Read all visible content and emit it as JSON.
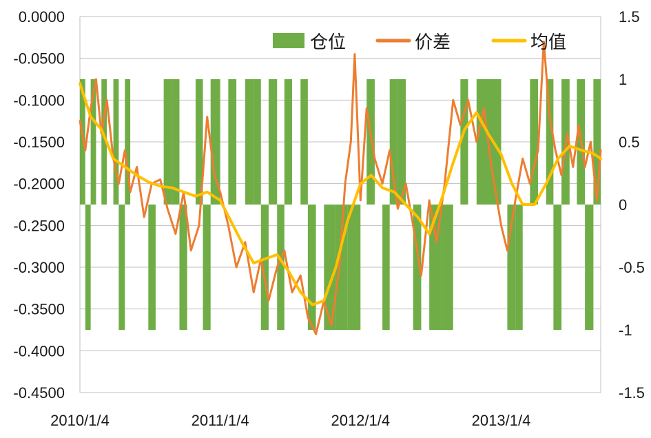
{
  "chart_data": {
    "type": "line",
    "title": "",
    "xlabel": "",
    "ylabel": "",
    "x_ticks": [
      "2010/1/4",
      "2011/1/4",
      "2012/1/4",
      "2013/1/4"
    ],
    "x_range": [
      "2010/1/4",
      "2013/9/20"
    ],
    "y_left": {
      "range": [
        -0.45,
        0.0
      ],
      "ticks": [
        "0.0000",
        "-0.0500",
        "-0.1000",
        "-0.1500",
        "-0.2000",
        "-0.2500",
        "-0.3000",
        "-0.3500",
        "-0.4000",
        "-0.4500"
      ],
      "tick_values": [
        0.0,
        -0.05,
        -0.1,
        -0.15,
        -0.2,
        -0.25,
        -0.3,
        -0.35,
        -0.4,
        -0.45
      ]
    },
    "y_right": {
      "range": [
        -1.5,
        1.5
      ],
      "ticks": [
        "1.5",
        "1",
        "0.5",
        "0",
        "-0.5",
        "-1",
        "-1.5"
      ],
      "tick_values": [
        1.5,
        1.0,
        0.5,
        0.0,
        -0.5,
        -1.0,
        -1.5
      ]
    },
    "grid": "horizontal",
    "legend": {
      "position": "top-right",
      "items": [
        {
          "name": "仓位",
          "color": "#70ad47",
          "kind": "area"
        },
        {
          "name": "价差",
          "color": "#ed7d31",
          "kind": "line"
        },
        {
          "name": "均值",
          "color": "#ffc000",
          "kind": "line"
        }
      ]
    },
    "series": [
      {
        "name": "仓位",
        "axis": "right",
        "kind": "area",
        "color": "#70ad47",
        "points": [
          [
            "2010/1/4",
            1
          ],
          [
            "2010/1/18",
            -1
          ],
          [
            "2010/2/1",
            1
          ],
          [
            "2010/2/15",
            0
          ],
          [
            "2010/3/1",
            1
          ],
          [
            "2010/3/15",
            0
          ],
          [
            "2010/4/1",
            1
          ],
          [
            "2010/4/15",
            -1
          ],
          [
            "2010/5/1",
            1
          ],
          [
            "2010/5/15",
            0
          ],
          [
            "2010/6/1",
            0
          ],
          [
            "2010/7/1",
            -1
          ],
          [
            "2010/7/20",
            0
          ],
          [
            "2010/8/10",
            1
          ],
          [
            "2010/9/1",
            1
          ],
          [
            "2010/9/20",
            -1
          ],
          [
            "2010/10/10",
            0
          ],
          [
            "2010/11/1",
            1
          ],
          [
            "2010/11/20",
            -1
          ],
          [
            "2010/12/10",
            1
          ],
          [
            "2011/1/4",
            0
          ],
          [
            "2011/1/25",
            1
          ],
          [
            "2011/2/15",
            0
          ],
          [
            "2011/3/10",
            1
          ],
          [
            "2011/4/1",
            1
          ],
          [
            "2011/4/20",
            -1
          ],
          [
            "2011/5/10",
            1
          ],
          [
            "2011/6/1",
            -1
          ],
          [
            "2011/6/20",
            1
          ],
          [
            "2011/7/10",
            0
          ],
          [
            "2011/8/1",
            1
          ],
          [
            "2011/8/20",
            -1
          ],
          [
            "2011/9/10",
            0
          ],
          [
            "2011/10/1",
            -1
          ],
          [
            "2011/11/1",
            -1
          ],
          [
            "2011/12/1",
            -1
          ],
          [
            "2012/1/4",
            0
          ],
          [
            "2012/1/20",
            1
          ],
          [
            "2012/2/10",
            0
          ],
          [
            "2012/3/1",
            -1
          ],
          [
            "2012/3/20",
            1
          ],
          [
            "2012/4/10",
            1
          ],
          [
            "2012/5/1",
            0
          ],
          [
            "2012/5/20",
            -1
          ],
          [
            "2012/6/10",
            0
          ],
          [
            "2012/7/1",
            -1
          ],
          [
            "2012/8/1",
            -1
          ],
          [
            "2012/9/1",
            0
          ],
          [
            "2012/9/20",
            1
          ],
          [
            "2012/10/10",
            0
          ],
          [
            "2012/11/1",
            1
          ],
          [
            "2012/12/1",
            1
          ],
          [
            "2013/1/4",
            0
          ],
          [
            "2013/1/20",
            -1
          ],
          [
            "2013/2/10",
            -1
          ],
          [
            "2013/3/1",
            0
          ],
          [
            "2013/3/20",
            1
          ],
          [
            "2013/4/10",
            0
          ],
          [
            "2013/5/1",
            1
          ],
          [
            "2013/5/20",
            -1
          ],
          [
            "2013/6/10",
            1
          ],
          [
            "2013/7/1",
            0
          ],
          [
            "2013/7/20",
            1
          ],
          [
            "2013/8/10",
            -1
          ],
          [
            "2013/9/1",
            1
          ],
          [
            "2013/9/20",
            0
          ]
        ]
      },
      {
        "name": "价差",
        "axis": "left",
        "kind": "line",
        "color": "#ed7d31",
        "points": [
          [
            "2010/1/4",
            -0.125
          ],
          [
            "2010/1/18",
            -0.16
          ],
          [
            "2010/2/1",
            -0.11
          ],
          [
            "2010/2/15",
            -0.075
          ],
          [
            "2010/3/1",
            -0.14
          ],
          [
            "2010/3/15",
            -0.1
          ],
          [
            "2010/4/1",
            -0.17
          ],
          [
            "2010/4/15",
            -0.2
          ],
          [
            "2010/5/1",
            -0.16
          ],
          [
            "2010/5/15",
            -0.21
          ],
          [
            "2010/6/1",
            -0.18
          ],
          [
            "2010/6/20",
            -0.24
          ],
          [
            "2010/7/10",
            -0.2
          ],
          [
            "2010/8/1",
            -0.195
          ],
          [
            "2010/8/20",
            -0.23
          ],
          [
            "2010/9/10",
            -0.26
          ],
          [
            "2010/10/1",
            -0.21
          ],
          [
            "2010/10/20",
            -0.28
          ],
          [
            "2010/11/10",
            -0.25
          ],
          [
            "2010/12/1",
            -0.12
          ],
          [
            "2010/12/20",
            -0.19
          ],
          [
            "2011/1/4",
            -0.21
          ],
          [
            "2011/1/25",
            -0.25
          ],
          [
            "2011/2/15",
            -0.3
          ],
          [
            "2011/3/10",
            -0.27
          ],
          [
            "2011/4/1",
            -0.33
          ],
          [
            "2011/4/20",
            -0.29
          ],
          [
            "2011/5/10",
            -0.34
          ],
          [
            "2011/6/1",
            -0.3
          ],
          [
            "2011/6/20",
            -0.28
          ],
          [
            "2011/7/10",
            -0.33
          ],
          [
            "2011/8/1",
            -0.31
          ],
          [
            "2011/8/20",
            -0.36
          ],
          [
            "2011/9/10",
            -0.38
          ],
          [
            "2011/10/1",
            -0.34
          ],
          [
            "2011/10/20",
            -0.37
          ],
          [
            "2011/11/10",
            -0.3
          ],
          [
            "2011/11/25",
            -0.2
          ],
          [
            "2011/12/10",
            -0.15
          ],
          [
            "2011/12/20",
            -0.045
          ],
          [
            "2012/1/4",
            -0.22
          ],
          [
            "2012/1/20",
            -0.11
          ],
          [
            "2012/2/10",
            -0.17
          ],
          [
            "2012/3/1",
            -0.2
          ],
          [
            "2012/3/20",
            -0.16
          ],
          [
            "2012/4/10",
            -0.23
          ],
          [
            "2012/5/1",
            -0.2
          ],
          [
            "2012/5/20",
            -0.25
          ],
          [
            "2012/6/10",
            -0.31
          ],
          [
            "2012/7/1",
            -0.22
          ],
          [
            "2012/7/20",
            -0.27
          ],
          [
            "2012/8/10",
            -0.2
          ],
          [
            "2012/9/1",
            -0.1
          ],
          [
            "2012/9/20",
            -0.13
          ],
          [
            "2012/10/10",
            -0.1
          ],
          [
            "2012/11/1",
            -0.15
          ],
          [
            "2012/11/20",
            -0.11
          ],
          [
            "2012/12/10",
            -0.18
          ],
          [
            "2013/1/4",
            -0.25
          ],
          [
            "2013/1/20",
            -0.28
          ],
          [
            "2013/2/10",
            -0.22
          ],
          [
            "2013/3/1",
            -0.17
          ],
          [
            "2013/3/20",
            -0.2
          ],
          [
            "2013/4/10",
            -0.16
          ],
          [
            "2013/4/25",
            -0.03
          ],
          [
            "2013/5/10",
            -0.12
          ],
          [
            "2013/5/25",
            -0.16
          ],
          [
            "2013/6/10",
            -0.19
          ],
          [
            "2013/6/25",
            -0.14
          ],
          [
            "2013/7/10",
            -0.18
          ],
          [
            "2013/7/25",
            -0.13
          ],
          [
            "2013/8/10",
            -0.18
          ],
          [
            "2013/8/25",
            -0.15
          ],
          [
            "2013/9/10",
            -0.22
          ],
          [
            "2013/9/20",
            -0.16
          ]
        ]
      },
      {
        "name": "均值",
        "axis": "left",
        "kind": "line",
        "color": "#ffc000",
        "points": [
          [
            "2010/1/4",
            -0.08
          ],
          [
            "2010/2/1",
            -0.12
          ],
          [
            "2010/3/1",
            -0.135
          ],
          [
            "2010/4/1",
            -0.17
          ],
          [
            "2010/5/1",
            -0.18
          ],
          [
            "2010/6/1",
            -0.19
          ],
          [
            "2010/7/1",
            -0.198
          ],
          [
            "2010/8/1",
            -0.203
          ],
          [
            "2010/9/1",
            -0.205
          ],
          [
            "2010/10/1",
            -0.21
          ],
          [
            "2010/11/1",
            -0.215
          ],
          [
            "2010/12/1",
            -0.21
          ],
          [
            "2011/1/4",
            -0.22
          ],
          [
            "2011/2/1",
            -0.245
          ],
          [
            "2011/3/1",
            -0.27
          ],
          [
            "2011/4/1",
            -0.295
          ],
          [
            "2011/5/1",
            -0.29
          ],
          [
            "2011/6/1",
            -0.285
          ],
          [
            "2011/7/1",
            -0.305
          ],
          [
            "2011/8/1",
            -0.33
          ],
          [
            "2011/9/1",
            -0.345
          ],
          [
            "2011/10/1",
            -0.34
          ],
          [
            "2011/11/1",
            -0.3
          ],
          [
            "2011/12/1",
            -0.245
          ],
          [
            "2012/1/4",
            -0.2
          ],
          [
            "2012/2/1",
            -0.19
          ],
          [
            "2012/3/1",
            -0.205
          ],
          [
            "2012/4/1",
            -0.21
          ],
          [
            "2012/5/1",
            -0.225
          ],
          [
            "2012/6/1",
            -0.24
          ],
          [
            "2012/7/1",
            -0.26
          ],
          [
            "2012/8/1",
            -0.22
          ],
          [
            "2012/9/1",
            -0.175
          ],
          [
            "2012/10/1",
            -0.135
          ],
          [
            "2012/11/1",
            -0.115
          ],
          [
            "2012/12/1",
            -0.14
          ],
          [
            "2013/1/4",
            -0.165
          ],
          [
            "2013/2/1",
            -0.2
          ],
          [
            "2013/3/1",
            -0.225
          ],
          [
            "2013/4/1",
            -0.225
          ],
          [
            "2013/5/1",
            -0.2
          ],
          [
            "2013/6/1",
            -0.17
          ],
          [
            "2013/7/1",
            -0.155
          ],
          [
            "2013/8/1",
            -0.16
          ],
          [
            "2013/9/1",
            -0.164
          ],
          [
            "2013/9/20",
            -0.17
          ]
        ]
      }
    ]
  }
}
